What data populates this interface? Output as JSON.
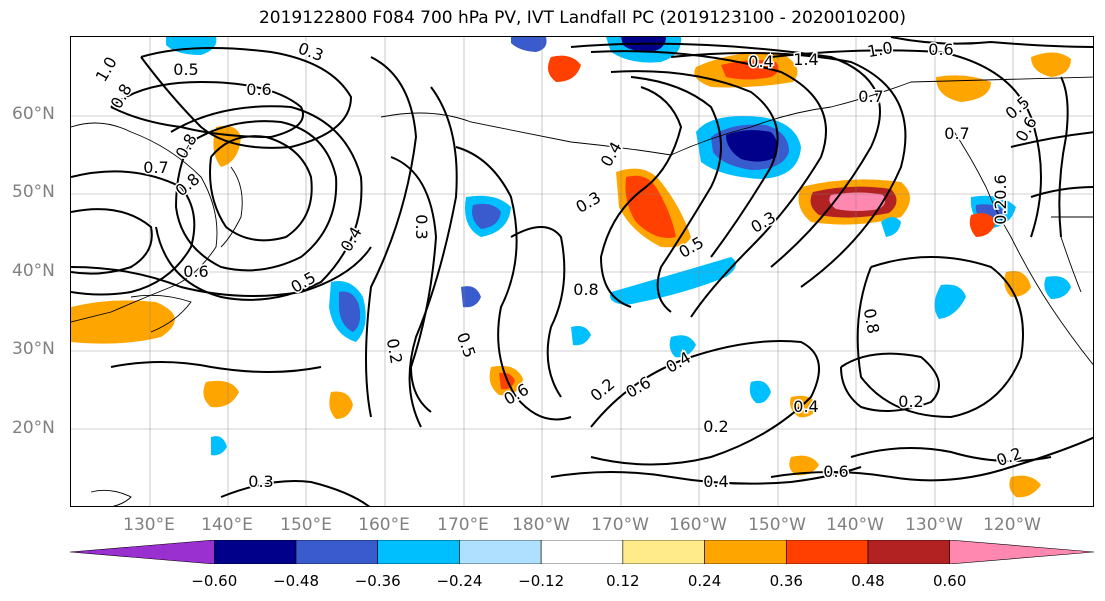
{
  "title": "2019122800 F084 700 hPa PV, IVT Landfall PC (2019123100 - 2020010200)",
  "lat_labels": [
    "60°N",
    "50°N",
    "40°N",
    "30°N",
    "20°N"
  ],
  "lon_labels": [
    "130°E",
    "140°E",
    "150°E",
    "160°E",
    "170°E",
    "180°W",
    "170°W",
    "160°W",
    "150°W",
    "140°W",
    "130°W",
    "120°W"
  ],
  "colorbar": {
    "colors": [
      "#9b30d0",
      "#00008b",
      "#3a5bcd",
      "#00bfff",
      "#b0e0ff",
      "#ffffff",
      "#ffeb8a",
      "#ffa500",
      "#ff4000",
      "#b22222",
      "#ff88b0"
    ],
    "tick_labels": [
      "−0.60",
      "−0.48",
      "−0.36",
      "−0.24",
      "−0.12",
      "0.12",
      "0.24",
      "0.36",
      "0.48",
      "0.60"
    ]
  },
  "contour_labels": [
    "0.3",
    "0.6",
    "0.5",
    "1.0",
    "0.8",
    "0.7",
    "0.8",
    "0.6",
    "0.5",
    "0.4",
    "0.3",
    "0.2",
    "0.5",
    "0.6",
    "0.3",
    "0.4",
    "0.8",
    "0.5",
    "0.4",
    "1.4",
    "1.0",
    "0.6",
    "0.7",
    "0.6",
    "0.5",
    "0.8",
    "0.2",
    "0.6",
    "0.2",
    "0.4",
    "0.3",
    "0.4",
    "0.2",
    "0.6",
    "0.2",
    "0.3",
    "0.4",
    "0.2",
    "0.8",
    "0.6",
    "0.7"
  ]
}
